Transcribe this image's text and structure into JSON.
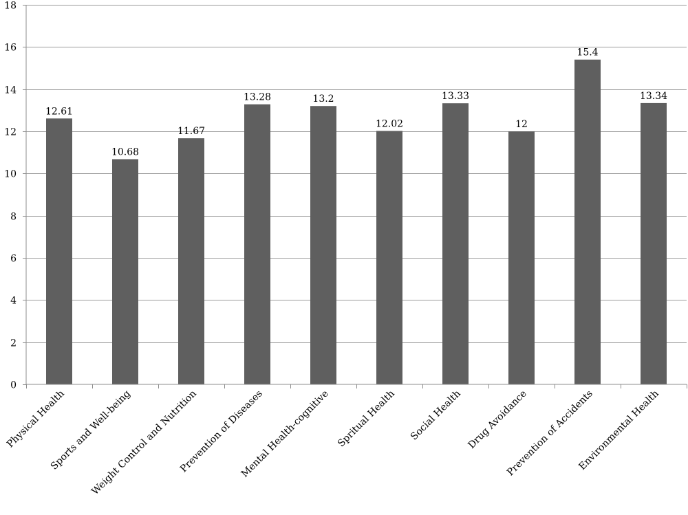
{
  "chart_data": {
    "type": "bar",
    "title": "",
    "xlabel": "",
    "ylabel": "",
    "ylim": [
      0,
      18
    ],
    "ytick_step": 2,
    "grid": true,
    "legend": "none",
    "bar_color": "#5f5f5f",
    "categories": [
      "Physical Health",
      "Sports and Well-being",
      "Weight Control and Nutrition",
      "Prevention of Diseases",
      "Mental Health-cognitive",
      "Spritual Health",
      "Social Health",
      "Drug Avoidance",
      "Prevention of Accidents",
      "Environmental Health"
    ],
    "values": [
      12.61,
      10.68,
      11.67,
      13.28,
      13.2,
      12.02,
      13.33,
      12,
      15.4,
      13.34
    ],
    "value_labels": [
      "12.61",
      "10.68",
      "11.67",
      "13.28",
      "13.2",
      "12.02",
      "13.33",
      "12",
      "15.4",
      "13.34"
    ]
  }
}
